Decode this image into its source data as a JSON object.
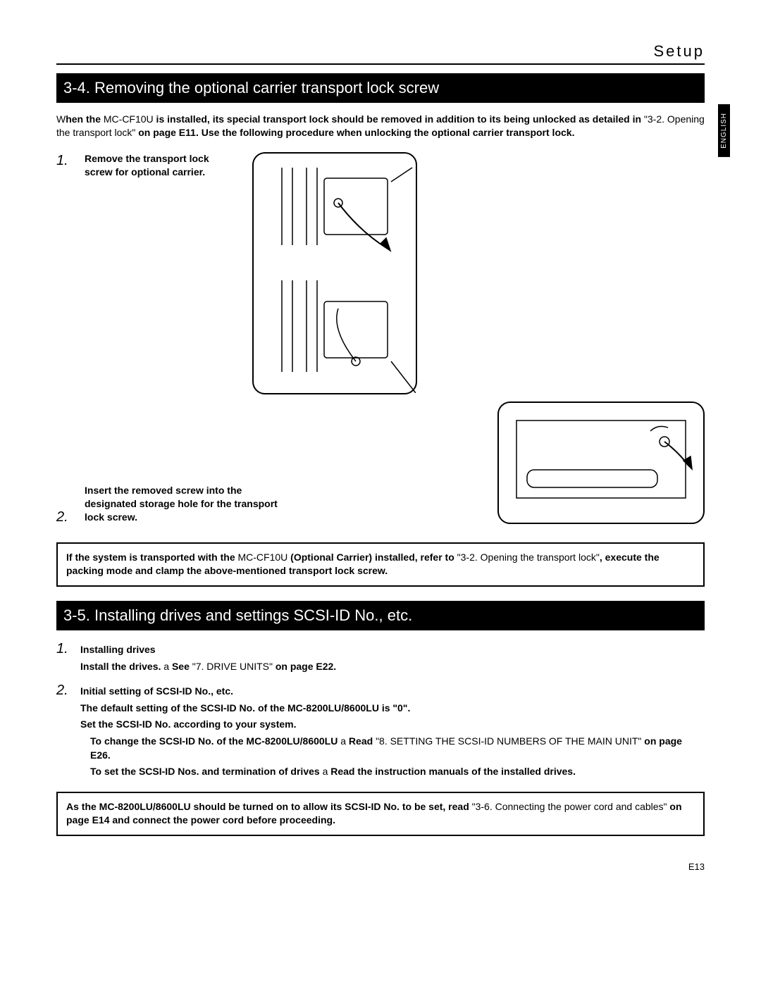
{
  "header": {
    "section": "Setup",
    "lang_tab": "ENGLISH"
  },
  "sec34": {
    "title": "3-4. Removing the optional carrier transport lock screw",
    "intro_html": "W<b>hen the </b>MC-CF10U<b> is installed, its special transport lock should be removed in addition to its being unlocked as detailed in </b>\"3-2. Opening the transport lock\"<b> on page E11. Use the following procedure when unlocking the optional carrier transport lock.</b>",
    "step1_html": "<b>Remove the transport lock screw for optional carrier.</b>",
    "step2_html": "<b>Insert the removed screw into the designated storage hole for the transport lock screw.</b>",
    "note_html": "<b>If the system is transported with the </b>MC-CF10U<b> (Optional Carrier) installed, refer to </b>\"3-2. Opening the transport lock\"<b>, execute the packing mode and clamp the above-mentioned transport lock screw.</b>"
  },
  "sec35": {
    "title": "3-5. Installing drives and settings SCSI-ID No., etc.",
    "step1_title": "<b>Installing drives</b>",
    "step1_body_html": "<b>Install the drives. </b>a<b> See </b>\"7. DRIVE UNITS\"<b> on page E22.</b>",
    "step2_title": "<b>Initial setting of SCSI-ID No., etc.</b>",
    "step2_l1_html": "<b>The default setting of the SCSI-ID No. of the MC-8200LU/8600LU is \"0\".</b>",
    "step2_l2_html": "<b>Set the SCSI-ID No. according to your system.</b>",
    "step2_l3_html": "<b>To change the SCSI-ID No. of the MC-8200LU/8600LU </b>a<b> Read </b>\"8. SETTING THE SCSI-ID NUMBERS OF THE MAIN UNIT\"<b> on page E26.</b>",
    "step2_l4_html": "<b>To set the SCSI-ID Nos. and termination of drives </b>a<b> Read the instruction manuals of the installed drives.</b>",
    "note_html": "<b>As the MC-8200LU/8600LU should be turned on to allow its SCSI-ID No. to be set, read </b>\"3-6. Connecting the power cord and cables\"<b> on page E14 and connect the power cord before proceeding.</b>"
  },
  "page_number": "E13",
  "colors": {
    "bar_bg": "#000000",
    "bar_fg": "#ffffff",
    "text": "#000000",
    "page_bg": "#ffffff"
  }
}
